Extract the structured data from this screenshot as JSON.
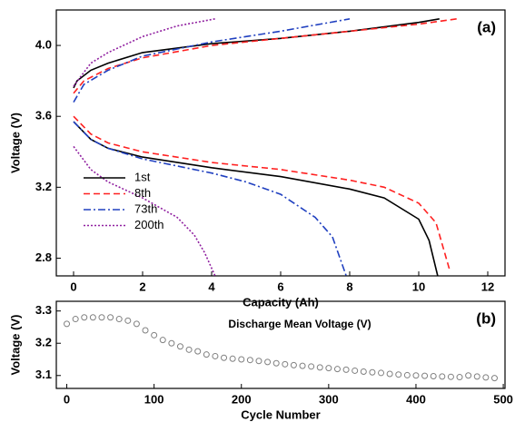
{
  "chart_data": [
    {
      "type": "line",
      "annotation": "(a)",
      "x_label": "Capacity (Ah)",
      "y_label": "Voltage (V)",
      "xlim": [
        -0.5,
        12.5
      ],
      "xticks": [
        0,
        2,
        4,
        6,
        8,
        10,
        12
      ],
      "ylim": [
        2.7,
        4.2
      ],
      "yticks": [
        2.8,
        3.2,
        3.6,
        {
          "value": 4,
          "label": "4.0"
        }
      ],
      "legend": "lower left",
      "series": [
        {
          "name": "1st",
          "color": "#000000",
          "dash": "solid",
          "x": [
            0,
            0.1,
            0.5,
            1,
            2,
            4,
            6,
            8,
            10,
            10.6,
            null,
            0,
            0.5,
            1,
            2,
            4,
            6,
            8,
            9,
            10,
            10.3,
            10.55
          ],
          "values": [
            3.76,
            3.8,
            3.86,
            3.9,
            3.96,
            4.01,
            4.04,
            4.08,
            4.13,
            4.15,
            null,
            3.57,
            3.47,
            3.42,
            3.37,
            3.31,
            3.26,
            3.19,
            3.14,
            3.02,
            2.9,
            2.7
          ]
        },
        {
          "name": "8th",
          "color": "#ff2020",
          "dash": "dash",
          "x": [
            0,
            0.3,
            1,
            2,
            4,
            6,
            8,
            10,
            11.1,
            null,
            0,
            0.5,
            1,
            2,
            4,
            6,
            8,
            9,
            10,
            10.5,
            10.9
          ],
          "values": [
            3.73,
            3.8,
            3.87,
            3.93,
            4.0,
            4.04,
            4.08,
            4.12,
            4.15,
            null,
            3.6,
            3.5,
            3.45,
            3.4,
            3.34,
            3.3,
            3.24,
            3.2,
            3.11,
            3.0,
            2.73
          ]
        },
        {
          "name": "73th",
          "color": "#2040c0",
          "dash": "dashdot",
          "x": [
            0,
            0.3,
            1,
            2,
            4,
            6,
            8,
            null,
            0,
            0.5,
            1,
            2,
            4,
            5,
            6,
            7,
            7.5,
            7.9
          ],
          "values": [
            3.68,
            3.78,
            3.86,
            3.94,
            4.02,
            4.08,
            4.15,
            null,
            3.57,
            3.47,
            3.42,
            3.36,
            3.28,
            3.23,
            3.16,
            3.03,
            2.92,
            2.7
          ]
        },
        {
          "name": "200th",
          "color": "#9020a0",
          "dash": "dot",
          "x": [
            0,
            0.5,
            1,
            2,
            3,
            4.1,
            null,
            0,
            0.5,
            1,
            2,
            3,
            3.5,
            3.8,
            4.1
          ],
          "values": [
            3.77,
            3.9,
            3.96,
            4.05,
            4.11,
            4.15,
            null,
            3.43,
            3.3,
            3.23,
            3.14,
            3.03,
            2.93,
            2.83,
            2.7
          ]
        }
      ]
    },
    {
      "type": "scatter",
      "annotation": "(b)",
      "inner_title": "Discharge Mean Voltage (V)",
      "x_label": "Cycle Number",
      "y_label": "Voltage (V)",
      "xlim": [
        -12,
        502
      ],
      "xticks": [
        0,
        100,
        200,
        300,
        400,
        500
      ],
      "ylim": [
        3.06,
        3.33
      ],
      "yticks": [
        3.1,
        3.2,
        3.3
      ],
      "color": "#808080",
      "x": [
        0,
        10,
        20,
        30,
        40,
        50,
        60,
        70,
        80,
        90,
        100,
        110,
        120,
        130,
        140,
        150,
        160,
        170,
        180,
        190,
        200,
        210,
        220,
        230,
        240,
        250,
        260,
        270,
        280,
        290,
        300,
        310,
        320,
        330,
        340,
        350,
        360,
        370,
        380,
        390,
        400,
        410,
        420,
        430,
        440,
        450,
        460,
        470,
        480,
        490
      ],
      "values": [
        3.26,
        3.275,
        3.28,
        3.28,
        3.28,
        3.28,
        3.275,
        3.27,
        3.26,
        3.24,
        3.225,
        3.21,
        3.2,
        3.19,
        3.18,
        3.175,
        3.165,
        3.16,
        3.155,
        3.152,
        3.15,
        3.148,
        3.145,
        3.142,
        3.138,
        3.135,
        3.132,
        3.13,
        3.128,
        3.125,
        3.123,
        3.12,
        3.118,
        3.115,
        3.112,
        3.11,
        3.108,
        3.105,
        3.103,
        3.101,
        3.1,
        3.099,
        3.098,
        3.097,
        3.096,
        3.095,
        3.1,
        3.097,
        3.094,
        3.092
      ]
    }
  ]
}
